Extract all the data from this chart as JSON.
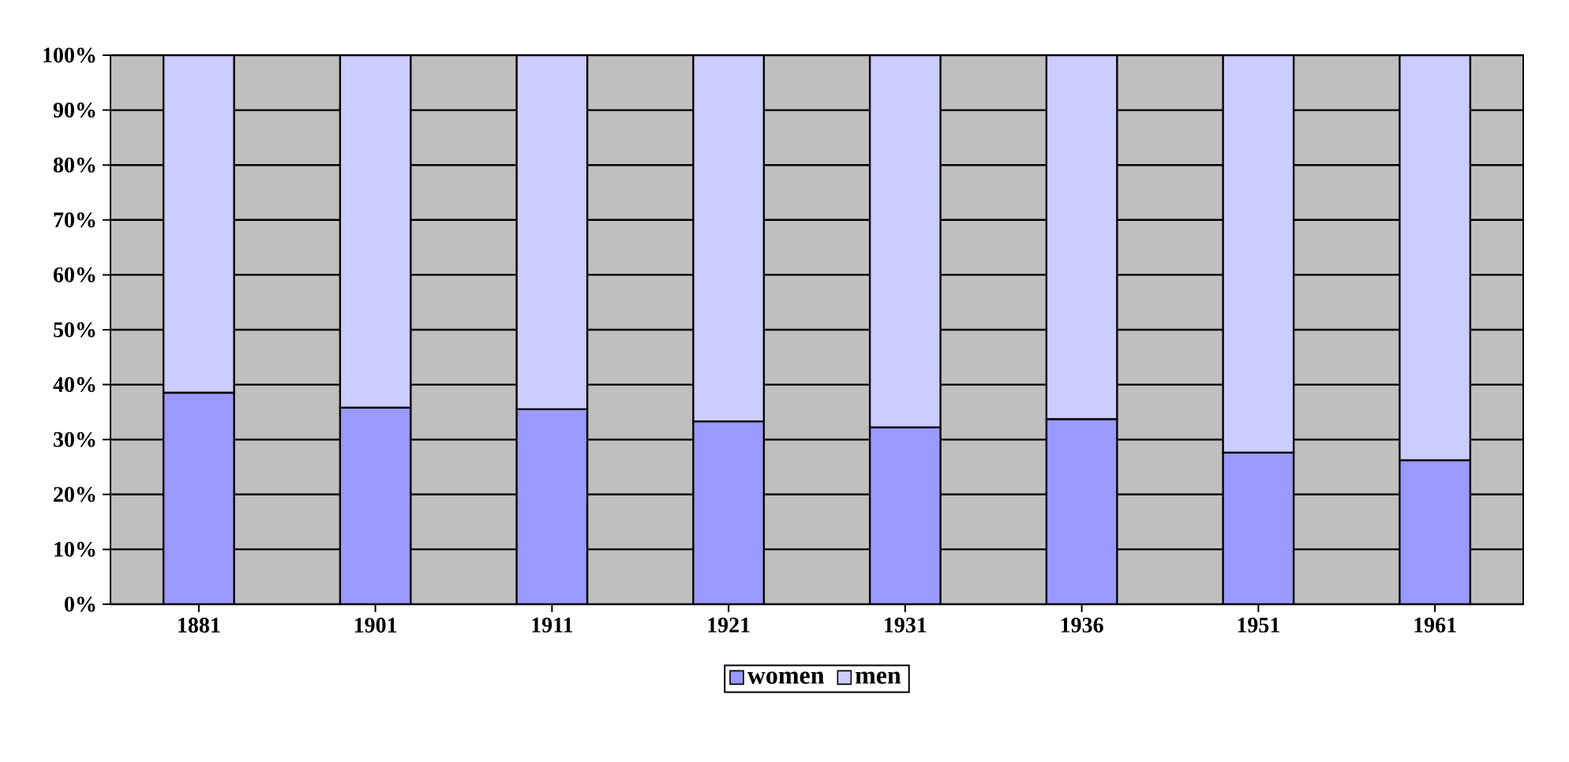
{
  "chart_data": {
    "type": "bar",
    "stacked": true,
    "categories": [
      "1881",
      "1901",
      "1911",
      "1921",
      "1931",
      "1936",
      "1951",
      "1961"
    ],
    "series": [
      {
        "name": "women",
        "color": "#9999ff",
        "values": [
          38.5,
          35.8,
          35.5,
          33.3,
          32.2,
          33.7,
          27.6,
          26.2
        ]
      },
      {
        "name": "men",
        "color": "#ccccff",
        "values": [
          61.5,
          64.2,
          64.5,
          66.7,
          67.8,
          66.3,
          72.4,
          73.8
        ]
      }
    ],
    "ylim": [
      0,
      100
    ],
    "yticks": [
      {
        "value": 0,
        "label": "0%"
      },
      {
        "value": 10,
        "label": "10%"
      },
      {
        "value": 20,
        "label": "20%"
      },
      {
        "value": 30,
        "label": "30%"
      },
      {
        "value": 40,
        "label": "40%"
      },
      {
        "value": 50,
        "label": "50%"
      },
      {
        "value": 60,
        "label": "60%"
      },
      {
        "value": 70,
        "label": "70%"
      },
      {
        "value": 80,
        "label": "80%"
      },
      {
        "value": 90,
        "label": "90%"
      },
      {
        "value": 100,
        "label": "100%"
      }
    ],
    "grid": "y",
    "legend": "bottom"
  }
}
